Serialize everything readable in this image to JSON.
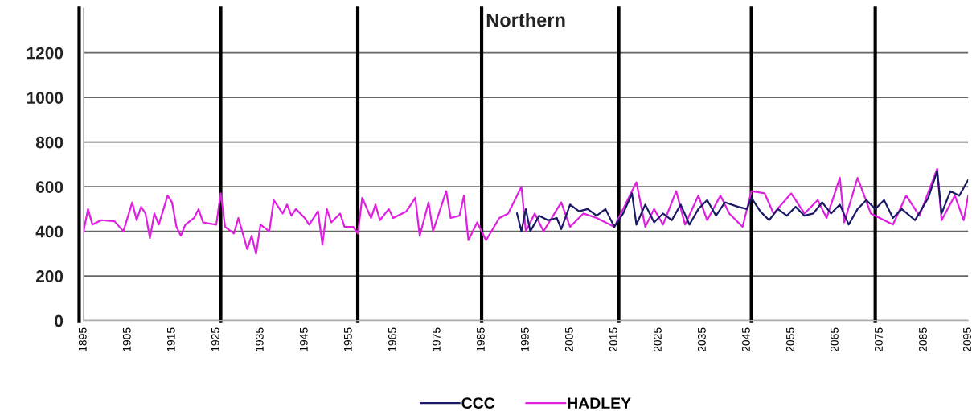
{
  "chart_data": {
    "type": "line",
    "title": "Northern",
    "xlim": [
      1895,
      2095
    ],
    "xticks": [
      1895,
      1905,
      1915,
      1925,
      1935,
      1945,
      1955,
      1965,
      1975,
      1985,
      1995,
      2005,
      2015,
      2025,
      2035,
      2045,
      2055,
      2065,
      2075,
      2085,
      2095
    ],
    "ylim": [
      0,
      1400
    ],
    "yticks": [
      0,
      200,
      400,
      600,
      800,
      1000,
      1200
    ],
    "grid": "y",
    "legend": "bottom",
    "ref_lines": [
      {
        "axis": "x",
        "value": 1894,
        "color": "#000000"
      },
      {
        "axis": "x",
        "value": 1926,
        "color": "#000000"
      },
      {
        "axis": "x",
        "value": 1957,
        "color": "#000000"
      },
      {
        "axis": "x",
        "value": 1985,
        "color": "#000000"
      },
      {
        "axis": "x",
        "value": 2016,
        "color": "#000000"
      },
      {
        "axis": "x",
        "value": 2046,
        "color": "#000000"
      },
      {
        "axis": "x",
        "value": 2074,
        "color": "#000000"
      }
    ],
    "series": [
      {
        "name": "CCC",
        "color": "#1a1a66",
        "x": [
          1993,
          1994,
          1995,
          1996,
          1998,
          2000,
          2002,
          2003,
          2005,
          2007,
          2009,
          2011,
          2013,
          2015,
          2017,
          2019,
          2020,
          2022,
          2024,
          2026,
          2028,
          2030,
          2032,
          2034,
          2036,
          2038,
          2040,
          2043,
          2045,
          2046,
          2048,
          2050,
          2052,
          2054,
          2056,
          2058,
          2060,
          2062,
          2064,
          2066,
          2068,
          2070,
          2072,
          2074,
          2076,
          2078,
          2080,
          2083,
          2086,
          2088,
          2089,
          2091,
          2093,
          2095
        ],
        "values": [
          480,
          400,
          500,
          400,
          470,
          450,
          460,
          410,
          520,
          490,
          500,
          470,
          500,
          420,
          480,
          570,
          430,
          520,
          440,
          480,
          450,
          520,
          430,
          500,
          540,
          470,
          530,
          510,
          500,
          550,
          490,
          450,
          500,
          470,
          510,
          470,
          480,
          530,
          480,
          520,
          430,
          500,
          540,
          500,
          540,
          460,
          500,
          450,
          550,
          670,
          480,
          580,
          560,
          630
        ]
      },
      {
        "name": "HADLEY",
        "color": "#e020e0",
        "x": [
          1895,
          1896,
          1897,
          1899,
          1902,
          1904,
          1906,
          1907,
          1908,
          1909,
          1910,
          1911,
          1912,
          1914,
          1915,
          1916,
          1917,
          1918,
          1920,
          1921,
          1922,
          1925,
          1926,
          1927,
          1929,
          1930,
          1931,
          1932,
          1933,
          1934,
          1935,
          1937,
          1938,
          1940,
          1941,
          1942,
          1943,
          1945,
          1946,
          1948,
          1949,
          1950,
          1951,
          1953,
          1954,
          1956,
          1957,
          1958,
          1960,
          1961,
          1962,
          1964,
          1965,
          1968,
          1970,
          1971,
          1973,
          1974,
          1977,
          1978,
          1980,
          1981,
          1982,
          1984,
          1986,
          1989,
          1991,
          1994,
          1995,
          1997,
          1999,
          2003,
          2005,
          2008,
          2011,
          2015,
          2018,
          2020,
          2022,
          2024,
          2026,
          2029,
          2031,
          2034,
          2036,
          2039,
          2041,
          2044,
          2046,
          2049,
          2051,
          2055,
          2058,
          2061,
          2063,
          2066,
          2067,
          2070,
          2073,
          2078,
          2081,
          2084,
          2088,
          2089,
          2092,
          2094,
          2095
        ],
        "values": [
          400,
          500,
          430,
          450,
          445,
          400,
          530,
          450,
          510,
          480,
          370,
          480,
          430,
          560,
          530,
          420,
          380,
          430,
          460,
          500,
          440,
          430,
          570,
          420,
          390,
          460,
          390,
          320,
          380,
          300,
          430,
          400,
          540,
          480,
          520,
          470,
          500,
          460,
          430,
          490,
          340,
          500,
          440,
          480,
          420,
          420,
          390,
          550,
          460,
          520,
          450,
          500,
          460,
          490,
          550,
          380,
          530,
          400,
          580,
          460,
          470,
          560,
          360,
          440,
          360,
          460,
          480,
          600,
          400,
          480,
          400,
          530,
          420,
          480,
          460,
          420,
          540,
          620,
          420,
          500,
          430,
          580,
          430,
          560,
          450,
          560,
          480,
          420,
          580,
          570,
          480,
          570,
          480,
          540,
          460,
          640,
          440,
          640,
          480,
          430,
          560,
          470,
          680,
          450,
          560,
          450,
          560
        ]
      }
    ]
  }
}
